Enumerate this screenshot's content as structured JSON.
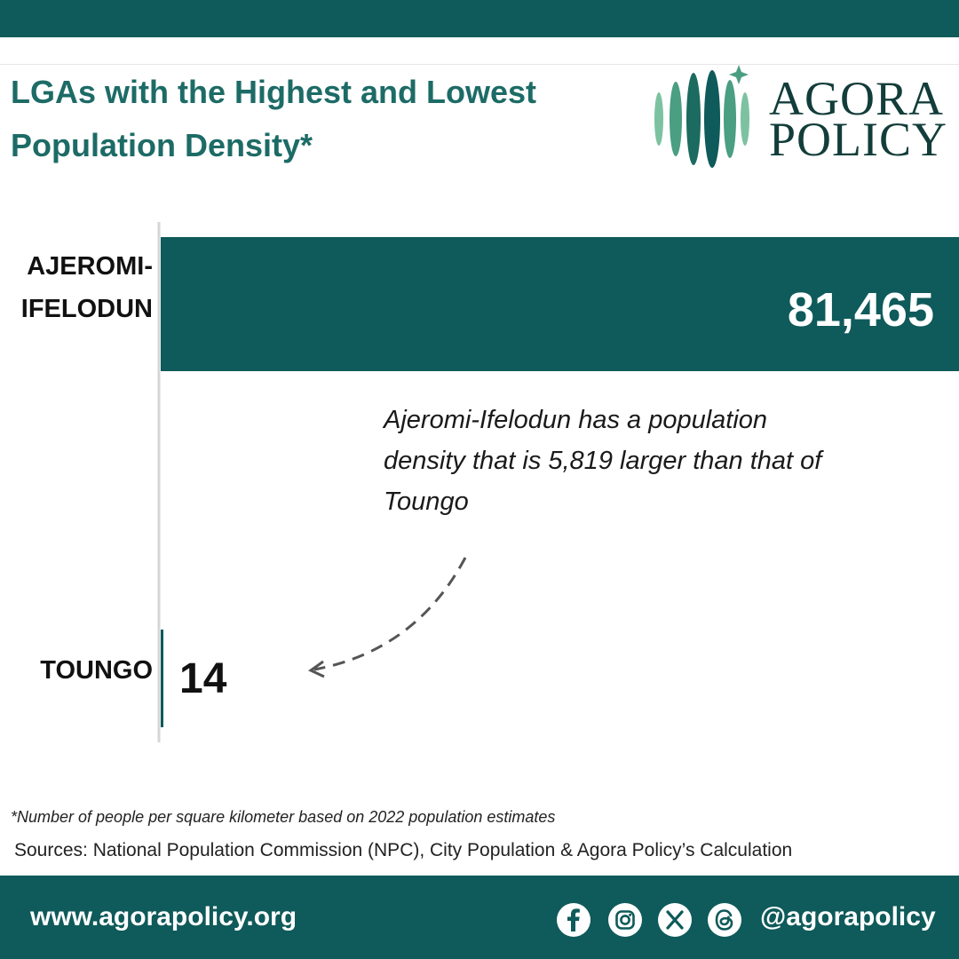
{
  "header": {
    "title_line1": "LGAs with the Highest and Lowest",
    "title_line2": "Population Density*"
  },
  "logo": {
    "line1": "AGORA",
    "line2": "POLICY",
    "icon": "agora-bars-logo-icon",
    "colors": [
      "#7cc2a1",
      "#4a9e82",
      "#1b6b60",
      "#0f5a5a"
    ]
  },
  "chart_data": {
    "type": "bar",
    "orientation": "horizontal",
    "categories": [
      "AJEROMI-IFELODUN",
      "TOUNGO"
    ],
    "category_lines": [
      [
        "AJEROMI-",
        "IFELODUN"
      ],
      [
        "TOUNGO"
      ]
    ],
    "values": [
      81465,
      14
    ],
    "value_labels": [
      "81,465",
      "14"
    ],
    "bar_color": "#0f5a5a",
    "annotation": {
      "line1": "Ajeromi-Ifelodun has a population",
      "line2": "density that is 5,819 larger than that of",
      "line3": "Toungo"
    },
    "grid": false,
    "legend": "none"
  },
  "footnote": "*Number of people per square kilometer  based on 2022 population estimates",
  "sources": "Sources: National Population Commission (NPC), City Population & Agora Policy’s Calculation",
  "footer": {
    "website": "www.agorapolicy.org",
    "handle": "@agorapolicy",
    "social_icons": [
      "facebook-icon",
      "instagram-icon",
      "x-icon",
      "threads-icon"
    ]
  },
  "colors": {
    "brand_teal": "#0f5a5a",
    "title_teal": "#1d6b66",
    "logo_dark": "#123d3a"
  }
}
